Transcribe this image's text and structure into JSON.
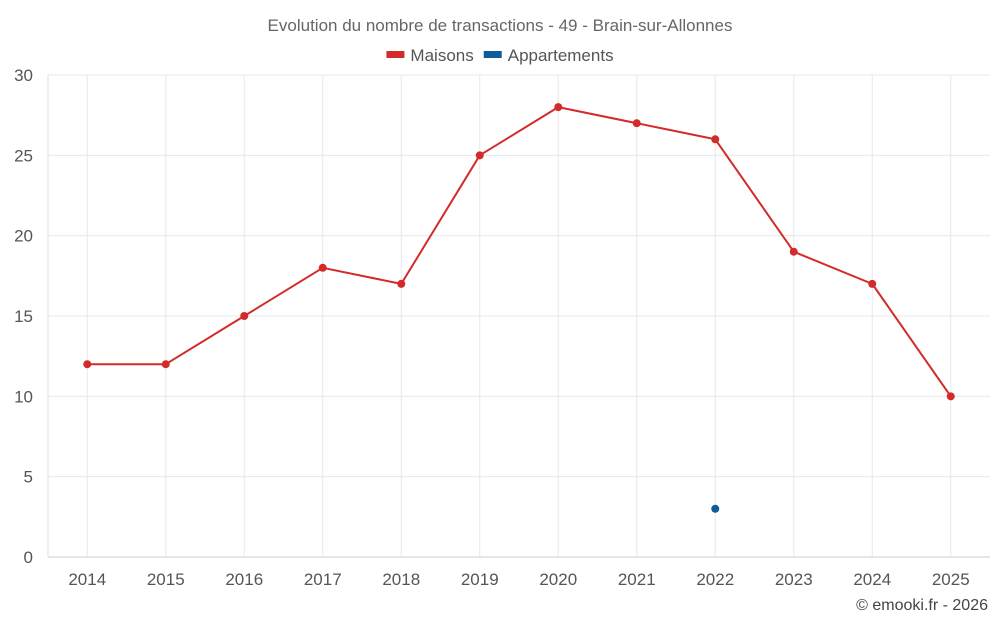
{
  "chart_data": {
    "type": "line",
    "title": "Evolution du nombre de transactions - 49 - Brain-sur-Allonnes",
    "categories": [
      "2014",
      "2015",
      "2016",
      "2017",
      "2018",
      "2019",
      "2020",
      "2021",
      "2022",
      "2023",
      "2024",
      "2025"
    ],
    "series": [
      {
        "name": "Maisons",
        "color": "#d32a2a",
        "values": [
          12,
          12,
          15,
          18,
          17,
          25,
          28,
          27,
          26,
          19,
          17,
          10
        ]
      },
      {
        "name": "Appartements",
        "color": "#0f5c99",
        "values": [
          null,
          null,
          null,
          null,
          null,
          null,
          null,
          null,
          3,
          null,
          null,
          null
        ]
      }
    ],
    "ylim": [
      0,
      30
    ],
    "yticks": [
      0,
      5,
      10,
      15,
      20,
      25,
      30
    ],
    "grid": true,
    "legend_position": "top-center",
    "credit": "© emooki.fr - 2026"
  }
}
